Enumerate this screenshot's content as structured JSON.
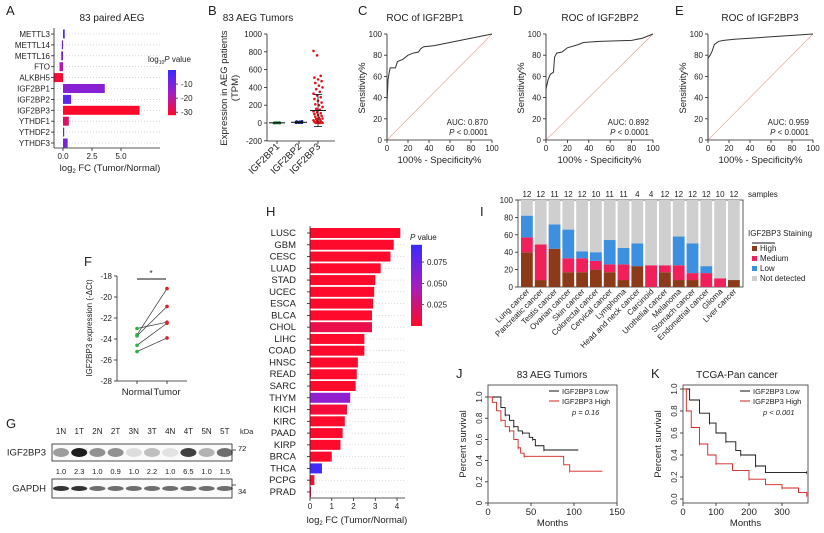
{
  "chart_data": [
    {
      "panel": "A",
      "type": "bar",
      "orientation": "horizontal",
      "title": "83 paired AEG",
      "xlabel": "log2 FC (Tumor/Normal)",
      "xlabel_main": "log",
      "xlabel_sub": "2",
      "xlabel_rest": " FC (Tumor/Normal)",
      "xticks": [
        "0.0",
        "2.5",
        "5.0"
      ],
      "xtick_values": [
        0,
        2.5,
        5
      ],
      "xlim": [
        -0.8,
        7.0
      ],
      "categories": [
        "METTL3",
        "METTL14",
        "METTL16",
        "FTO",
        "ALKBH5",
        "IGF2BP1",
        "IGF2BP2",
        "IGF2BP3",
        "YTHDF1",
        "YTHDF2",
        "YTHDF3"
      ],
      "values": [
        0.15,
        -0.1,
        -0.15,
        -0.3,
        -0.8,
        3.6,
        0.7,
        6.6,
        0.5,
        0.1,
        0.4
      ],
      "log10_p": [
        -3,
        -6,
        -8,
        -18,
        -31,
        -12,
        -5,
        -33,
        -26,
        -4,
        -10
      ],
      "legend": {
        "title_main": "log",
        "title_sub": "10",
        "title_italic": "P",
        "title_rest": " value",
        "ticks": [
          "-10",
          "-20",
          "-30"
        ],
        "tick_values": [
          -10,
          -20,
          -30
        ],
        "range": [
          -32,
          0
        ],
        "colors": [
          "#3a2bff",
          "#a21dc4",
          "#ff0a2a"
        ]
      },
      "grid": "dotted horizontal"
    },
    {
      "panel": "B",
      "type": "scatter",
      "title": "83 AEG Tumors",
      "ylabel_line1": "Expression in AEG patients",
      "ylabel_line2": "(TPM)",
      "ylim": [
        -200,
        1000
      ],
      "yticks": [
        "-200",
        "0",
        "200",
        "400",
        "600",
        "800",
        "1000"
      ],
      "ytick_values": [
        -200,
        0,
        200,
        400,
        600,
        800,
        1000
      ],
      "categories": [
        "IGF2BP1",
        "IGF2BP2",
        "IGF2BP3"
      ],
      "colors": [
        "#1a8a3a",
        "#1a2a9a",
        "#e0101a"
      ],
      "series": [
        {
          "points": [
            0,
            1,
            2,
            3,
            1,
            0,
            2,
            4,
            1,
            3,
            2,
            0,
            5,
            1,
            2,
            3,
            6,
            1,
            2,
            0
          ],
          "mean": 2,
          "sd": 2
        },
        {
          "points": [
            2,
            5,
            8,
            10,
            3,
            6,
            12,
            15,
            4,
            7,
            9,
            11,
            5,
            14,
            18,
            6,
            3,
            8,
            10,
            20
          ],
          "mean": 8,
          "sd": 5
        },
        {
          "points": [
            810,
            760,
            530,
            510,
            490,
            470,
            450,
            420,
            400,
            380,
            350,
            330,
            310,
            290,
            270,
            250,
            230,
            210,
            200,
            180,
            160,
            150,
            130,
            120,
            110,
            100,
            90,
            80,
            70,
            60,
            50,
            45,
            40,
            30,
            25,
            20,
            15,
            10,
            8,
            5,
            3,
            2,
            1,
            0
          ],
          "mean": 140,
          "sd": 180
        }
      ]
    },
    {
      "panel": "C",
      "type": "line",
      "title": "ROC of IGF2BP1",
      "xlabel": "100% - Specificity%",
      "ylabel": "Sensitivity%",
      "xlim": [
        0,
        100
      ],
      "ylim": [
        0,
        100
      ],
      "ticks": [
        "0",
        "20",
        "40",
        "60",
        "80",
        "100"
      ],
      "tick_values": [
        0,
        20,
        40,
        60,
        80,
        100
      ],
      "x": [
        0,
        0,
        1,
        2,
        3,
        8,
        10,
        15,
        20,
        25,
        30,
        32,
        35,
        45,
        100
      ],
      "y": [
        0,
        35,
        57,
        63,
        68,
        68,
        74,
        76,
        80,
        82,
        83,
        86,
        88,
        89,
        100
      ],
      "auc": "AUC: 0.870",
      "p_italic": "P",
      "p_rest": " < 0.0001"
    },
    {
      "panel": "D",
      "type": "line",
      "title": "ROC of IGF2BP2",
      "xlabel": "100% - Specificity%",
      "ylabel": "Sensitivity%",
      "xlim": [
        0,
        100
      ],
      "ylim": [
        0,
        100
      ],
      "ticks": [
        "0",
        "20",
        "40",
        "60",
        "80",
        "100"
      ],
      "tick_values": [
        0,
        20,
        40,
        60,
        80,
        100
      ],
      "x": [
        0,
        0,
        2,
        4,
        7,
        8,
        10,
        15,
        20,
        30,
        35,
        50,
        80,
        90,
        100
      ],
      "y": [
        0,
        48,
        57,
        62,
        64,
        78,
        82,
        83,
        87,
        90,
        92,
        93,
        94,
        96,
        100
      ],
      "auc": "AUC: 0.892",
      "p_italic": "P",
      "p_rest": " < 0.0001"
    },
    {
      "panel": "E",
      "type": "line",
      "title": "ROC of IGF2BP3",
      "xlabel": "100% - Specificity%",
      "ylabel": "Sensitivity%",
      "xlim": [
        0,
        100
      ],
      "ylim": [
        0,
        100
      ],
      "ticks": [
        "0",
        "20",
        "40",
        "60",
        "80",
        "100"
      ],
      "tick_values": [
        0,
        20,
        40,
        60,
        80,
        100
      ],
      "x": [
        0,
        0,
        2,
        4,
        6,
        10,
        15,
        25,
        40,
        100
      ],
      "y": [
        0,
        77,
        80,
        84,
        90,
        93,
        94,
        95,
        96,
        100
      ],
      "auc": "AUC: 0.959",
      "p_italic": "P",
      "p_rest": " < 0.0001"
    },
    {
      "panel": "F",
      "type": "scatter",
      "subtype": "paired",
      "ylabel": "IGF2BP3 expression (-ΔCt)",
      "ylim": [
        -28,
        -18
      ],
      "yticks": [
        "-28",
        "-26",
        "-24",
        "-22",
        "-20",
        "-18"
      ],
      "ytick_values": [
        -28,
        -26,
        -24,
        -22,
        -20,
        -18
      ],
      "categories": [
        "Normal",
        "Tumor"
      ],
      "colors": [
        "#2ab04a",
        "#e0202a"
      ],
      "pairs": [
        [
          -23.6,
          -19.2
        ],
        [
          -23.7,
          -20.9
        ],
        [
          -23.0,
          -22.4
        ],
        [
          -24.6,
          -22.5
        ],
        [
          -25.2,
          -23.9
        ]
      ],
      "significance": "*"
    },
    {
      "panel": "H",
      "type": "bar",
      "orientation": "horizontal",
      "xlabel_main": "log",
      "xlabel_sub": "2",
      "xlabel_rest": " FC (Tumor/Normal)",
      "xlim": [
        0,
        4.3
      ],
      "xticks": [
        "0",
        "1",
        "2",
        "3",
        "4"
      ],
      "xtick_values": [
        0,
        1,
        2,
        3,
        4
      ],
      "categories": [
        "LUSC",
        "GBM",
        "CESC",
        "LUAD",
        "STAD",
        "UCEC",
        "ESCA",
        "BLCA",
        "CHOL",
        "LIHC",
        "COAD",
        "HNSC",
        "READ",
        "SARC",
        "THYM",
        "KICH",
        "KIRC",
        "PAAD",
        "KIRP",
        "BRCA",
        "THCA",
        "PCPG",
        "PRAD"
      ],
      "values": [
        4.15,
        3.85,
        3.7,
        3.25,
        3.0,
        2.95,
        2.9,
        2.85,
        2.85,
        2.5,
        2.5,
        2.2,
        2.15,
        2.1,
        1.85,
        1.7,
        1.6,
        1.5,
        1.4,
        1.0,
        0.55,
        0.2,
        0.03
      ],
      "p_values": [
        0.001,
        0.001,
        0.001,
        0.001,
        0.001,
        0.001,
        0.001,
        0.001,
        0.01,
        0.001,
        0.001,
        0.001,
        0.001,
        0.001,
        0.055,
        0.005,
        0.001,
        0.001,
        0.001,
        0.001,
        0.092,
        0.001,
        0.005
      ],
      "legend": {
        "title_italic": "P",
        "title_rest": " value",
        "ticks": [
          "0.075",
          "0.050",
          "0.025"
        ],
        "tick_values": [
          0.075,
          0.05,
          0.025
        ],
        "range": [
          0,
          0.095
        ],
        "colors": [
          "#ff0a2a",
          "#a21dc4",
          "#3a2bff"
        ]
      },
      "grid": "dotted horizontal"
    },
    {
      "panel": "I",
      "type": "bar",
      "stacked": true,
      "ylim": [
        0,
        100
      ],
      "yticks": [
        "0",
        "20",
        "40",
        "60",
        "80",
        "100"
      ],
      "ytick_values": [
        0,
        20,
        40,
        60,
        80,
        100
      ],
      "samples_label": "samples",
      "samples": [
        "12",
        "12",
        "11",
        "12",
        "12",
        "10",
        "11",
        "11",
        "4",
        "4",
        "12",
        "12",
        "12",
        "12",
        "10",
        "12"
      ],
      "categories": [
        "Lung cancer",
        "Pancreatic cancer",
        "Testis cancer",
        "Ovarian cancer",
        "Skin cancer",
        "Colorectal cancer",
        "Cervical cancer",
        "Lymphoma",
        "Head and neck cancer",
        "Carcinoid",
        "Urothelial cancer",
        "Melanoma",
        "Stomach cancer",
        "Endometrial cancer",
        "Glioma",
        "Liver cancer"
      ],
      "legend_title": "IGF2BP3 Staining",
      "series": [
        {
          "name": "High",
          "color": "#8b3a1a",
          "values": [
            40,
            8,
            44,
            17,
            17,
            20,
            17,
            8,
            24,
            0,
            17,
            8,
            8,
            0,
            0,
            8
          ]
        },
        {
          "name": "Medium",
          "color": "#f0205a",
          "values": [
            17,
            41,
            0,
            16,
            16,
            10,
            9,
            18,
            0,
            25,
            8,
            17,
            8,
            16,
            10,
            0
          ]
        },
        {
          "name": "Low",
          "color": "#3d8fe0",
          "values": [
            25,
            0,
            28,
            33,
            8,
            10,
            28,
            19,
            26,
            0,
            0,
            33,
            34,
            8,
            0,
            0
          ]
        },
        {
          "name": "Not detected",
          "color": "#cfcfcf",
          "values": [
            18,
            51,
            28,
            34,
            59,
            60,
            46,
            55,
            50,
            75,
            75,
            42,
            50,
            76,
            90,
            92
          ]
        }
      ]
    },
    {
      "panel": "J",
      "type": "line",
      "subtype": "kaplan-meier",
      "title": "83 AEG Tumors",
      "xlabel": "Months",
      "ylabel": "Percent survival",
      "xlim": [
        0,
        150
      ],
      "ylim": [
        0,
        1.0
      ],
      "xticks": [
        "0",
        "50",
        "100",
        "150"
      ],
      "xtick_values": [
        0,
        50,
        100,
        150
      ],
      "yticks": [
        "0",
        "0.2",
        "0.4",
        "0.6",
        "0.8",
        "1.0"
      ],
      "ytick_values": [
        0,
        0.2,
        0.4,
        0.6,
        0.8,
        1.0
      ],
      "series": [
        {
          "name": "IGF2BP3 Low",
          "color": "#111111",
          "x": [
            0,
            10,
            15,
            20,
            25,
            30,
            35,
            40,
            48,
            52,
            55,
            65,
            105
          ],
          "y": [
            1,
            1,
            0.9,
            0.83,
            0.78,
            0.72,
            0.68,
            0.66,
            0.62,
            0.6,
            0.54,
            0.5,
            0.5
          ]
        },
        {
          "name": "IGF2BP3 High",
          "color": "#d42020",
          "x": [
            0,
            5,
            10,
            15,
            20,
            25,
            30,
            35,
            38,
            42,
            88,
            95,
            133
          ],
          "y": [
            1,
            0.95,
            0.87,
            0.78,
            0.72,
            0.68,
            0.6,
            0.52,
            0.47,
            0.44,
            0.36,
            0.3,
            0.3
          ]
        }
      ],
      "p_text": "p = 0.16"
    },
    {
      "panel": "K",
      "type": "line",
      "subtype": "kaplan-meier",
      "title": "TCGA-Pan cancer",
      "xlabel": "Months",
      "ylabel": "Percent survival",
      "xlim": [
        0,
        380
      ],
      "ylim": [
        0,
        1.0
      ],
      "xticks": [
        "0",
        "100",
        "200",
        "300"
      ],
      "xtick_values": [
        0,
        100,
        200,
        300
      ],
      "yticks": [
        "0.0",
        "0.2",
        "0.4",
        "0.6",
        "0.8",
        "1.0"
      ],
      "ytick_values": [
        0,
        0.2,
        0.4,
        0.6,
        0.8,
        1.0
      ],
      "series": [
        {
          "name": "IGF2BP3 Low",
          "color": "#111111",
          "x": [
            0,
            20,
            50,
            80,
            100,
            130,
            160,
            175,
            210,
            220,
            250,
            375
          ],
          "y": [
            1,
            0.9,
            0.78,
            0.69,
            0.6,
            0.52,
            0.44,
            0.4,
            0.4,
            0.3,
            0.24,
            0.24
          ]
        },
        {
          "name": "IGF2BP3 High",
          "color": "#d42020",
          "x": [
            0,
            10,
            25,
            50,
            75,
            100,
            150,
            200,
            250,
            300,
            350,
            375
          ],
          "y": [
            1,
            0.8,
            0.65,
            0.5,
            0.4,
            0.32,
            0.26,
            0.18,
            0.13,
            0.1,
            0.06,
            0.03
          ]
        }
      ],
      "p_text": "p < 0.001"
    }
  ],
  "western_blot": {
    "panel": "G",
    "lanes": [
      "1N",
      "1T",
      "2N",
      "2T",
      "3N",
      "3T",
      "4N",
      "4T",
      "5N",
      "5T"
    ],
    "unit": "kDa",
    "rows": [
      {
        "label": "IGF2BP3",
        "marker": "72"
      },
      {
        "label": "GAPDH",
        "marker": "34"
      }
    ],
    "ratios": [
      "1.0",
      "2.3",
      "1.0",
      "0.9",
      "1.0",
      "2.2",
      "1.0",
      "6.5",
      "1.0",
      "1.5"
    ]
  },
  "panel_labels": [
    "A",
    "B",
    "C",
    "D",
    "E",
    "F",
    "G",
    "H",
    "I",
    "J",
    "K"
  ]
}
